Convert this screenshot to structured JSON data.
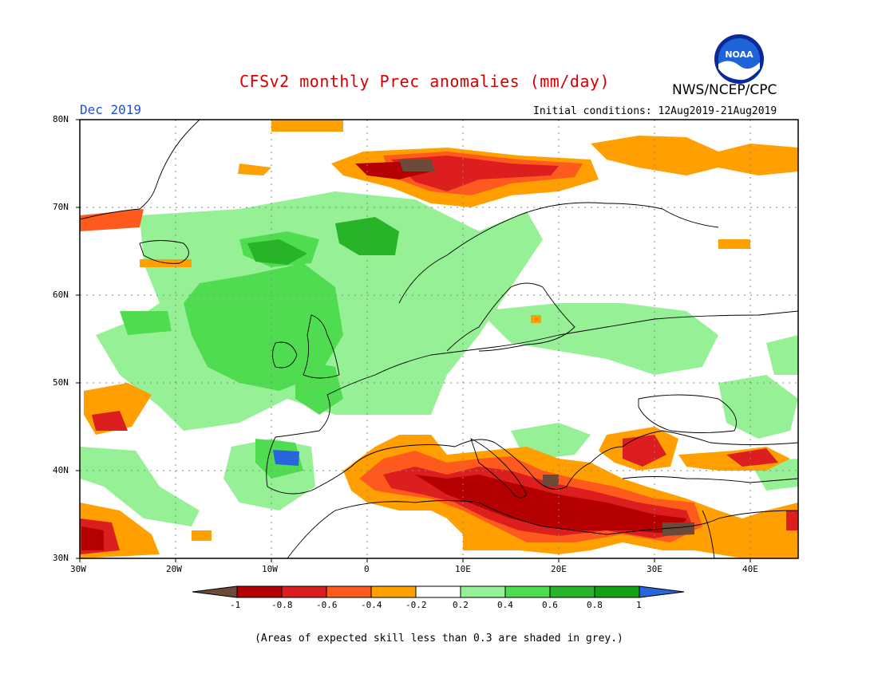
{
  "header": {
    "title": "CFSv2 monthly Prec anomalies (mm/day)",
    "agency": "NWS/NCEP/CPC",
    "month": "Dec 2019",
    "initial_conditions": "Initial conditions: 12Aug2019-21Aug2019",
    "logo_text": "NOAA"
  },
  "map": {
    "lat_labels": [
      "80N",
      "70N",
      "60N",
      "50N",
      "40N",
      "30N"
    ],
    "lon_labels": [
      "30W",
      "20W",
      "10W",
      "0",
      "10E",
      "20E",
      "30E",
      "40E"
    ],
    "lat_values": [
      80,
      70,
      60,
      50,
      40,
      30
    ],
    "lon_values": [
      -30,
      -20,
      -10,
      0,
      10,
      20,
      30,
      40
    ],
    "extent": {
      "lon_min": -30,
      "lon_max": 45,
      "lat_min": 30,
      "lat_max": 80
    }
  },
  "colorbar": {
    "labels": [
      "-1",
      "-0.8",
      "-0.6",
      "-0.4",
      "-0.2",
      "0.2",
      "0.4",
      "0.6",
      "0.8",
      "1"
    ],
    "colors": [
      "#6b4a3a",
      "#b40000",
      "#dc1e1e",
      "#ff5a1e",
      "#ffa000",
      "#ffffff",
      "#96f096",
      "#50dc50",
      "#28b428",
      "#14a014",
      "#2864dc"
    ]
  },
  "footnote": "(Areas of expected skill less than 0.3 are shaded in grey.)"
}
